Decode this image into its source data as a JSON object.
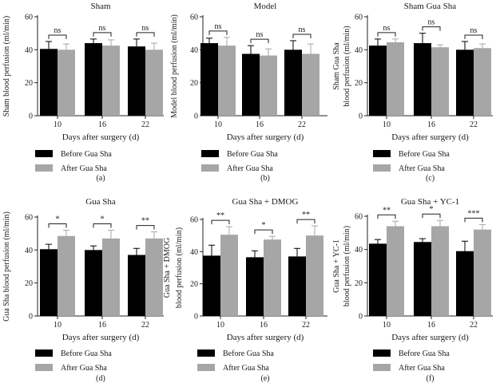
{
  "colors": {
    "before": "#000000",
    "after": "#a6a6a6",
    "axis": "#222222"
  },
  "legend": {
    "before_label": "Before Gua Sha",
    "after_label": "After Gua Sha"
  },
  "chart_data": [
    {
      "panel": "(a)",
      "type": "bar",
      "title": "Sham",
      "xlabel": "Days after surgery (d)",
      "ylabel_lines": [
        "Sham blood perfusion (ml/min)"
      ],
      "ylim": [
        0,
        60
      ],
      "yticks": [
        "0",
        "20",
        "40",
        "60"
      ],
      "categories": [
        "10",
        "16",
        "22"
      ],
      "series": [
        {
          "name": "Before Gua Sha",
          "values": [
            40.5,
            44,
            42
          ],
          "errors": [
            4.5,
            2.5,
            4.5
          ]
        },
        {
          "name": "After Gua Sha",
          "values": [
            40,
            42.5,
            40
          ],
          "errors": [
            3.5,
            3.5,
            4
          ]
        }
      ],
      "significance": [
        "ns",
        "ns",
        "ns"
      ]
    },
    {
      "panel": "(b)",
      "type": "bar",
      "title": "Model",
      "xlabel": "Days after surgery (d)",
      "ylabel_lines": [
        "Model blood perfusion (ml/min)"
      ],
      "ylim": [
        0,
        60
      ],
      "yticks": [
        "0",
        "20",
        "40",
        "60"
      ],
      "categories": [
        "10",
        "16",
        "22"
      ],
      "series": [
        {
          "name": "Before Gua Sha",
          "values": [
            44,
            37.5,
            40
          ],
          "errors": [
            3,
            5,
            5.5
          ]
        },
        {
          "name": "After Gua Sha",
          "values": [
            42.5,
            36.5,
            37.5
          ],
          "errors": [
            5,
            4,
            6
          ]
        }
      ],
      "significance": [
        "ns",
        "ns",
        "ns"
      ]
    },
    {
      "panel": "(c)",
      "type": "bar",
      "title": "Sham Gua Sha",
      "xlabel": "Days after surgery (d)",
      "ylabel_lines": [
        "Sham Gua Sha",
        "blood perfusion (ml/min)"
      ],
      "ylim": [
        0,
        60
      ],
      "yticks": [
        "0",
        "20",
        "40",
        "60"
      ],
      "categories": [
        "10",
        "16",
        "22"
      ],
      "series": [
        {
          "name": "Before Gua Sha",
          "values": [
            42.5,
            44,
            40
          ],
          "errors": [
            4,
            6,
            5
          ]
        },
        {
          "name": "After Gua Sha",
          "values": [
            44.5,
            41.5,
            41
          ],
          "errors": [
            2,
            1.5,
            2.5
          ]
        }
      ],
      "significance": [
        "ns",
        "ns",
        "ns"
      ]
    },
    {
      "panel": "(d)",
      "type": "bar",
      "title": "Gua Sha",
      "xlabel": "Days after surgery (d)",
      "ylabel_lines": [
        "Gua Sha blood perfusion (ml/min)"
      ],
      "ylim": [
        0,
        60
      ],
      "yticks": [
        "0",
        "20",
        "40",
        "60"
      ],
      "categories": [
        "10",
        "16",
        "22"
      ],
      "series": [
        {
          "name": "Before Gua Sha",
          "values": [
            40.5,
            40,
            37
          ],
          "errors": [
            3,
            2.5,
            4
          ]
        },
        {
          "name": "After Gua Sha",
          "values": [
            48.5,
            47,
            47
          ],
          "errors": [
            3.5,
            5,
            4
          ]
        }
      ],
      "significance": [
        "*",
        "*",
        "**"
      ]
    },
    {
      "panel": "(e)",
      "type": "bar",
      "title": "Gua Sha + DMOG",
      "xlabel": "Days after surgery (d)",
      "ylabel_lines": [
        "Gua Sha + DMOG",
        "blood perfusion (ml/min)"
      ],
      "ylim": [
        0,
        60
      ],
      "yticks": [
        "0",
        "20",
        "40",
        "60"
      ],
      "categories": [
        "10",
        "16",
        "22"
      ],
      "series": [
        {
          "name": "Before Gua Sha",
          "values": [
            37.5,
            36.5,
            37
          ],
          "errors": [
            6.5,
            4,
            5
          ]
        },
        {
          "name": "After Gua Sha",
          "values": [
            50.5,
            47.5,
            50
          ],
          "errors": [
            5,
            2,
            6
          ]
        }
      ],
      "significance": [
        "**",
        "*",
        "**"
      ]
    },
    {
      "panel": "(f)",
      "type": "bar",
      "title": "Gua Sha + YC-1",
      "xlabel": "Days after surgery (d)",
      "ylabel_lines": [
        "Gua Sha + YC-1",
        "blood perfusion (ml/min)"
      ],
      "ylim": [
        0,
        60
      ],
      "yticks": [
        "0",
        "20",
        "40",
        "60"
      ],
      "categories": [
        "10",
        "16",
        "22"
      ],
      "series": [
        {
          "name": "Before Gua Sha",
          "values": [
            43.5,
            44.5,
            39
          ],
          "errors": [
            2.5,
            2,
            6
          ]
        },
        {
          "name": "After Gua Sha",
          "values": [
            54,
            54,
            52
          ],
          "errors": [
            3,
            3.5,
            3
          ]
        }
      ],
      "significance": [
        "**",
        "*",
        "***"
      ]
    }
  ]
}
